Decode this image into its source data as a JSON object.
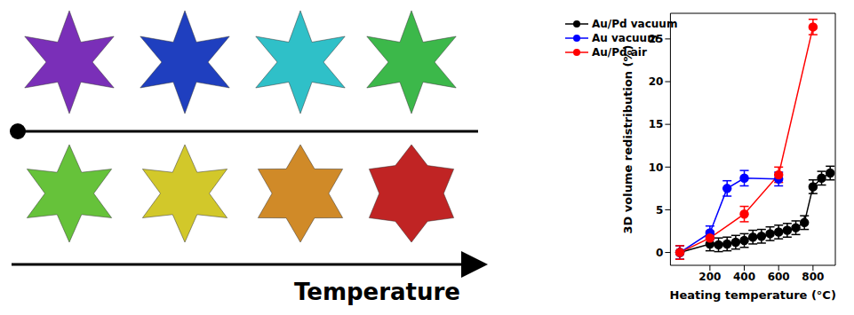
{
  "chart_data": {
    "type": "line",
    "x_label": "Heating temperature (°C)",
    "y_label": "3D volume redistribution (%)",
    "xlim": [
      -30,
      930
    ],
    "xticks": [
      200,
      400,
      600,
      800
    ],
    "ylim": [
      -1.5,
      28
    ],
    "yticks": [
      0,
      5,
      10,
      15,
      20,
      25
    ],
    "legend": "top-left",
    "grid": false,
    "series": [
      {
        "name": "Au/Pd vacuum",
        "color": "#000000",
        "marker": "circle",
        "line_style": "solid",
        "x": [
          25,
          200,
          250,
          300,
          350,
          400,
          450,
          500,
          550,
          600,
          650,
          700,
          750,
          800,
          850,
          900
        ],
        "values": [
          0,
          1.0,
          0.9,
          1.0,
          1.2,
          1.4,
          1.8,
          1.9,
          2.2,
          2.4,
          2.6,
          2.9,
          3.5,
          7.7,
          8.7,
          9.3
        ],
        "errors": [
          0.8,
          0.8,
          0.8,
          0.8,
          0.8,
          0.8,
          0.8,
          0.8,
          0.8,
          0.8,
          0.8,
          0.8,
          0.8,
          0.8,
          0.8,
          0.8
        ]
      },
      {
        "name": "Au vacuum",
        "color": "#0000ff",
        "marker": "circle",
        "line_style": "solid",
        "x": [
          25,
          200,
          300,
          400,
          600
        ],
        "values": [
          0,
          2.3,
          7.5,
          8.7,
          8.6
        ],
        "errors": [
          0.8,
          0.8,
          0.9,
          0.9,
          0.8
        ]
      },
      {
        "name": "Au/Pd air",
        "color": "#ff0000",
        "marker": "circle",
        "line_style": "solid",
        "x": [
          25,
          200,
          400,
          600,
          800
        ],
        "values": [
          0,
          1.7,
          4.5,
          9.1,
          26.4
        ],
        "errors": [
          0.8,
          0.8,
          0.9,
          0.9,
          0.9
        ]
      }
    ]
  },
  "illustration": {
    "arrow_label": "Temperature"
  }
}
